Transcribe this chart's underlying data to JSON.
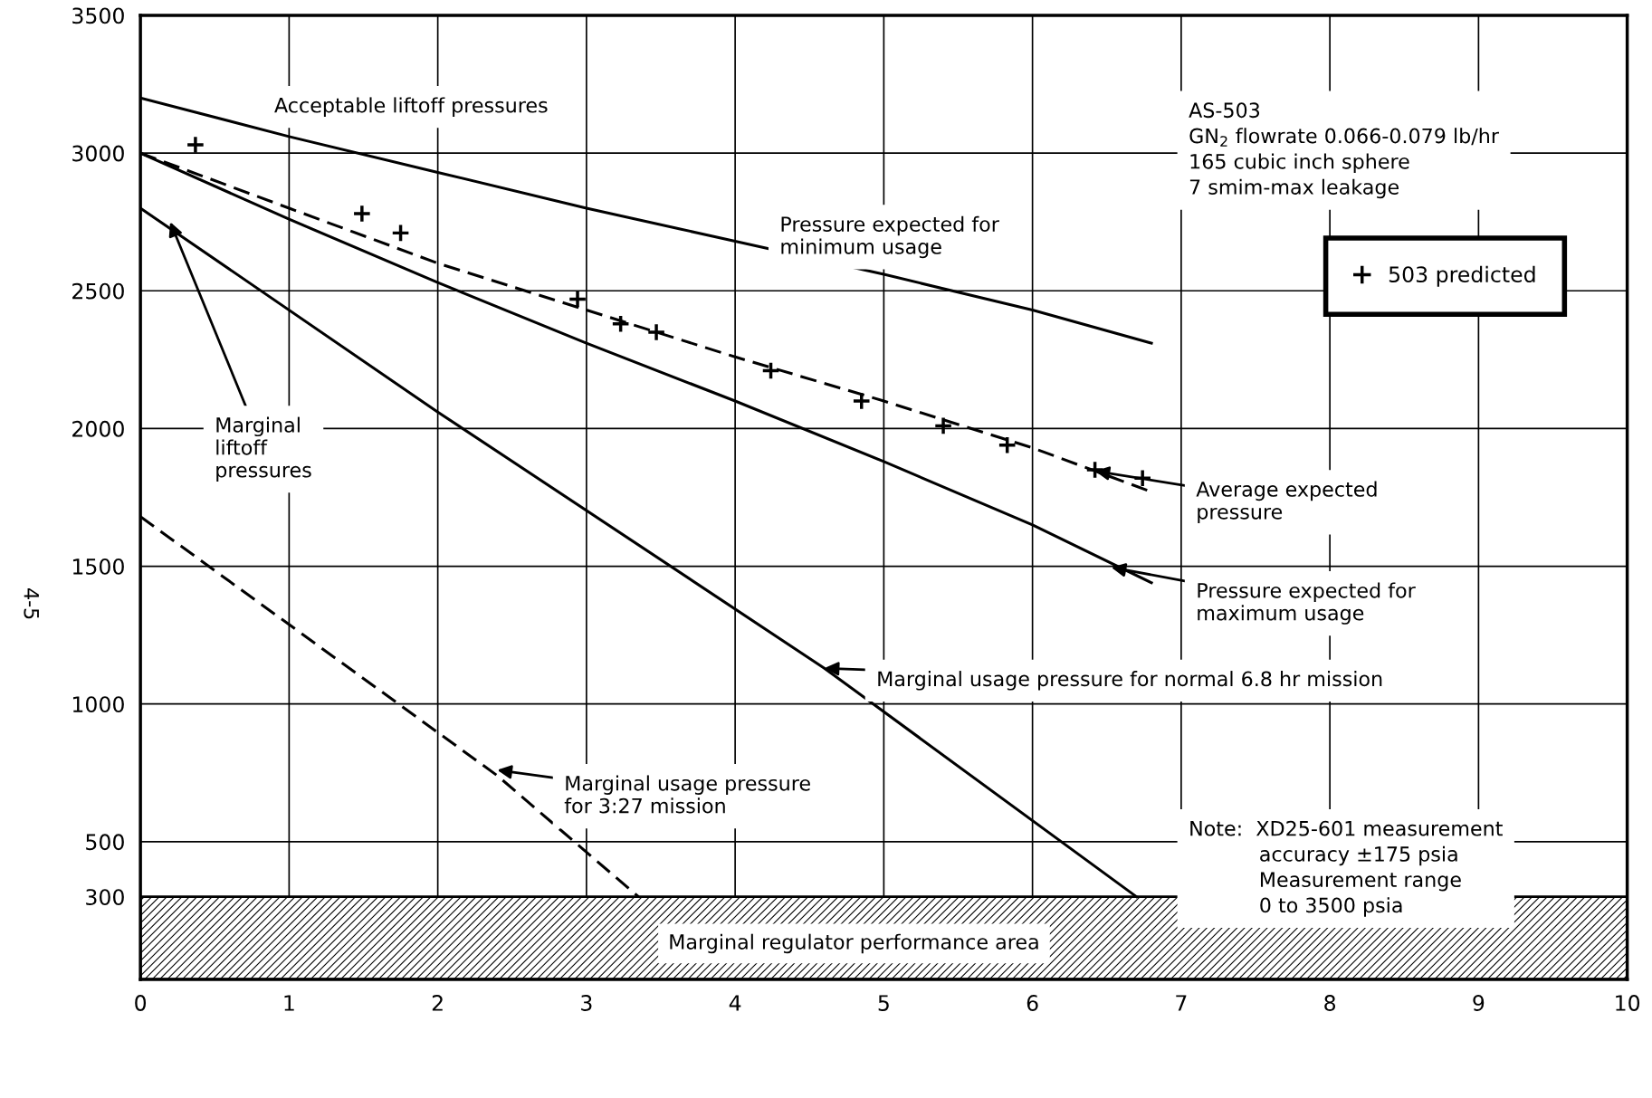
{
  "chart_data": {
    "type": "line",
    "xlim": [
      0,
      10
    ],
    "xticks": [
      0,
      1,
      2,
      3,
      4,
      5,
      6,
      7,
      8,
      9,
      10
    ],
    "ylim": [
      0,
      3500
    ],
    "yticks": [
      300,
      500,
      1000,
      1500,
      2000,
      2500,
      3000,
      3500
    ],
    "grid": true,
    "legend": "top right",
    "marker": "none",
    "series": [
      {
        "color": "#000000",
        "line_style": "solid",
        "x": [
          0,
          1,
          2,
          3,
          4,
          5,
          6,
          6.8
        ],
        "values": [
          3200,
          3060,
          2930,
          2800,
          2680,
          2560,
          2430,
          2310
        ]
      },
      {
        "color": "#000000",
        "line_style": "dashed",
        "x": [
          0,
          1,
          2,
          3,
          4,
          5,
          6,
          6.8
        ],
        "values": [
          3000,
          2800,
          2600,
          2430,
          2260,
          2100,
          1930,
          1770
        ]
      },
      {
        "color": "#000000",
        "line_style": "solid",
        "x": [
          0,
          1,
          2,
          3,
          4,
          5,
          6,
          6.8
        ],
        "values": [
          3000,
          2760,
          2530,
          2310,
          2100,
          1880,
          1650,
          1440
        ]
      },
      {
        "color": "#000000",
        "line_style": "solid",
        "x": [
          0,
          2,
          4.6,
          6.7
        ],
        "values": [
          2800,
          2060,
          1130,
          300
        ]
      },
      {
        "color": "#000000",
        "line_style": "dashed",
        "x": [
          0,
          2.4,
          3.35
        ],
        "values": [
          1680,
          740,
          300
        ]
      },
      {
        "name": "503 predicted",
        "type": "scatter",
        "marker": "cross",
        "color": "#000000",
        "x": [
          0.37,
          1.49,
          1.75,
          2.94,
          3.23,
          3.47,
          4.24,
          4.85,
          5.4,
          5.83,
          6.42,
          6.74
        ],
        "values": [
          3030,
          2780,
          2710,
          2470,
          2380,
          2350,
          2210,
          2100,
          2010,
          1940,
          1850,
          1820
        ]
      }
    ],
    "bands": [
      {
        "axis": "y",
        "from": 0,
        "to": 300,
        "label": "Marginal regulator performance area",
        "color": "#000000"
      }
    ],
    "annotations": [
      "Acceptable liftoff pressures",
      {
        "text": "Marginal\nliftoff\npressures",
        "x": 0.2,
        "y": 2750
      },
      {
        "text": "Pressure expected for\nminimum usage",
        "x": 4.3,
        "y": 2640
      },
      {
        "text": "Average expected\npressure",
        "x": 6.42,
        "y": 1846
      },
      {
        "text": "Pressure expected for\nmaximum usage",
        "x": 6.53,
        "y": 1496
      },
      {
        "text": "Marginal usage pressure for normal 6.8 hr mission",
        "x": 4.6,
        "y": 1130
      },
      {
        "text": "Marginal usage pressure\nfor 3:27 mission",
        "x": 2.4,
        "y": 760
      },
      "AS-503\nGN$_{2}$ flowrate 0.066-0.079 lb/hr\n165 cubic inch sphere\n7 smim-max leakage",
      "Note:  XD25-601 measurement\n           accuracy ±175 psia\n           Measurement range\n           0 to 3500 psia",
      "4-5"
    ]
  }
}
